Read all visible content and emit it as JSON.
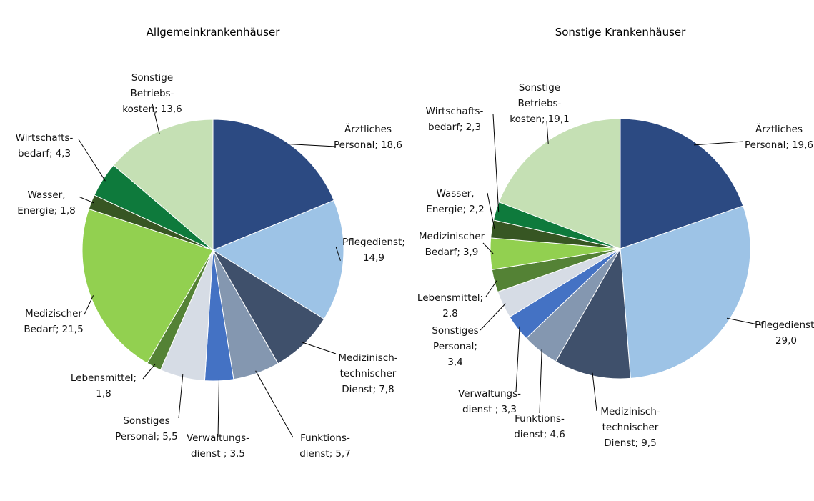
{
  "chart_data": [
    {
      "type": "pie",
      "title": "Allgemeinkrankenhäuser",
      "categories": [
        "Ärztliches\nPersonal;",
        "Pflegedienst;",
        "Medizinisch-\ntechnischer\nDienst;",
        "Funktions-\ndienst;",
        "Verwaltungs-\ndienst ;",
        "Sonstiges\nPersonal;",
        "Lebensmittel;",
        "Medizischer\nBedarf;",
        "Wasser,\nEnergie;",
        "Wirtschafts-\nbedarf;",
        "Sonstige\nBetriebs-\nkosten;"
      ],
      "values": [
        18.6,
        14.9,
        7.8,
        5.7,
        3.5,
        5.5,
        1.8,
        21.5,
        1.8,
        4.3,
        13.6
      ],
      "value_labels": [
        "18,6",
        "14,9",
        "7,8",
        "5,7",
        "3,5",
        "5,5",
        "1,8",
        "21,5",
        "1,8",
        "4,3",
        "13,6"
      ],
      "colors": [
        "#2c4a82",
        "#9dc3e6",
        "#3f506b",
        "#8497b0",
        "#4472c4",
        "#d6dce5",
        "#548235",
        "#92d050",
        "#375623",
        "#0e7a3c",
        "#c5e0b4"
      ]
    },
    {
      "type": "pie",
      "title": "Sonstige Krankenhäuser",
      "categories": [
        "Ärztliches\nPersonal;",
        "Pflegedienst;",
        "Medizinisch-\ntechnischer\nDienst;",
        "Funktions-\ndienst;",
        "Verwaltungs-\ndienst ;",
        "Sonstiges\nPersonal;",
        "Lebensmittel;",
        "Medizinischer\nBedarf;",
        "Wasser,\nEnergie;",
        "Wirtschafts-\nbedarf;",
        "Sonstige\nBetriebs-\nkosten;"
      ],
      "values": [
        19.6,
        29.0,
        9.5,
        4.6,
        3.3,
        3.4,
        2.8,
        3.9,
        2.2,
        2.3,
        19.1
      ],
      "value_labels": [
        "19,6",
        "29,0",
        "9,5",
        "4,6",
        "3,3",
        "3,4",
        "2,8",
        "3,9",
        "2,2",
        "2,3",
        "19,1"
      ],
      "colors": [
        "#2c4a82",
        "#9dc3e6",
        "#3f506b",
        "#8497b0",
        "#4472c4",
        "#d6dce5",
        "#548235",
        "#92d050",
        "#375623",
        "#0e7a3c",
        "#c5e0b4"
      ]
    }
  ]
}
